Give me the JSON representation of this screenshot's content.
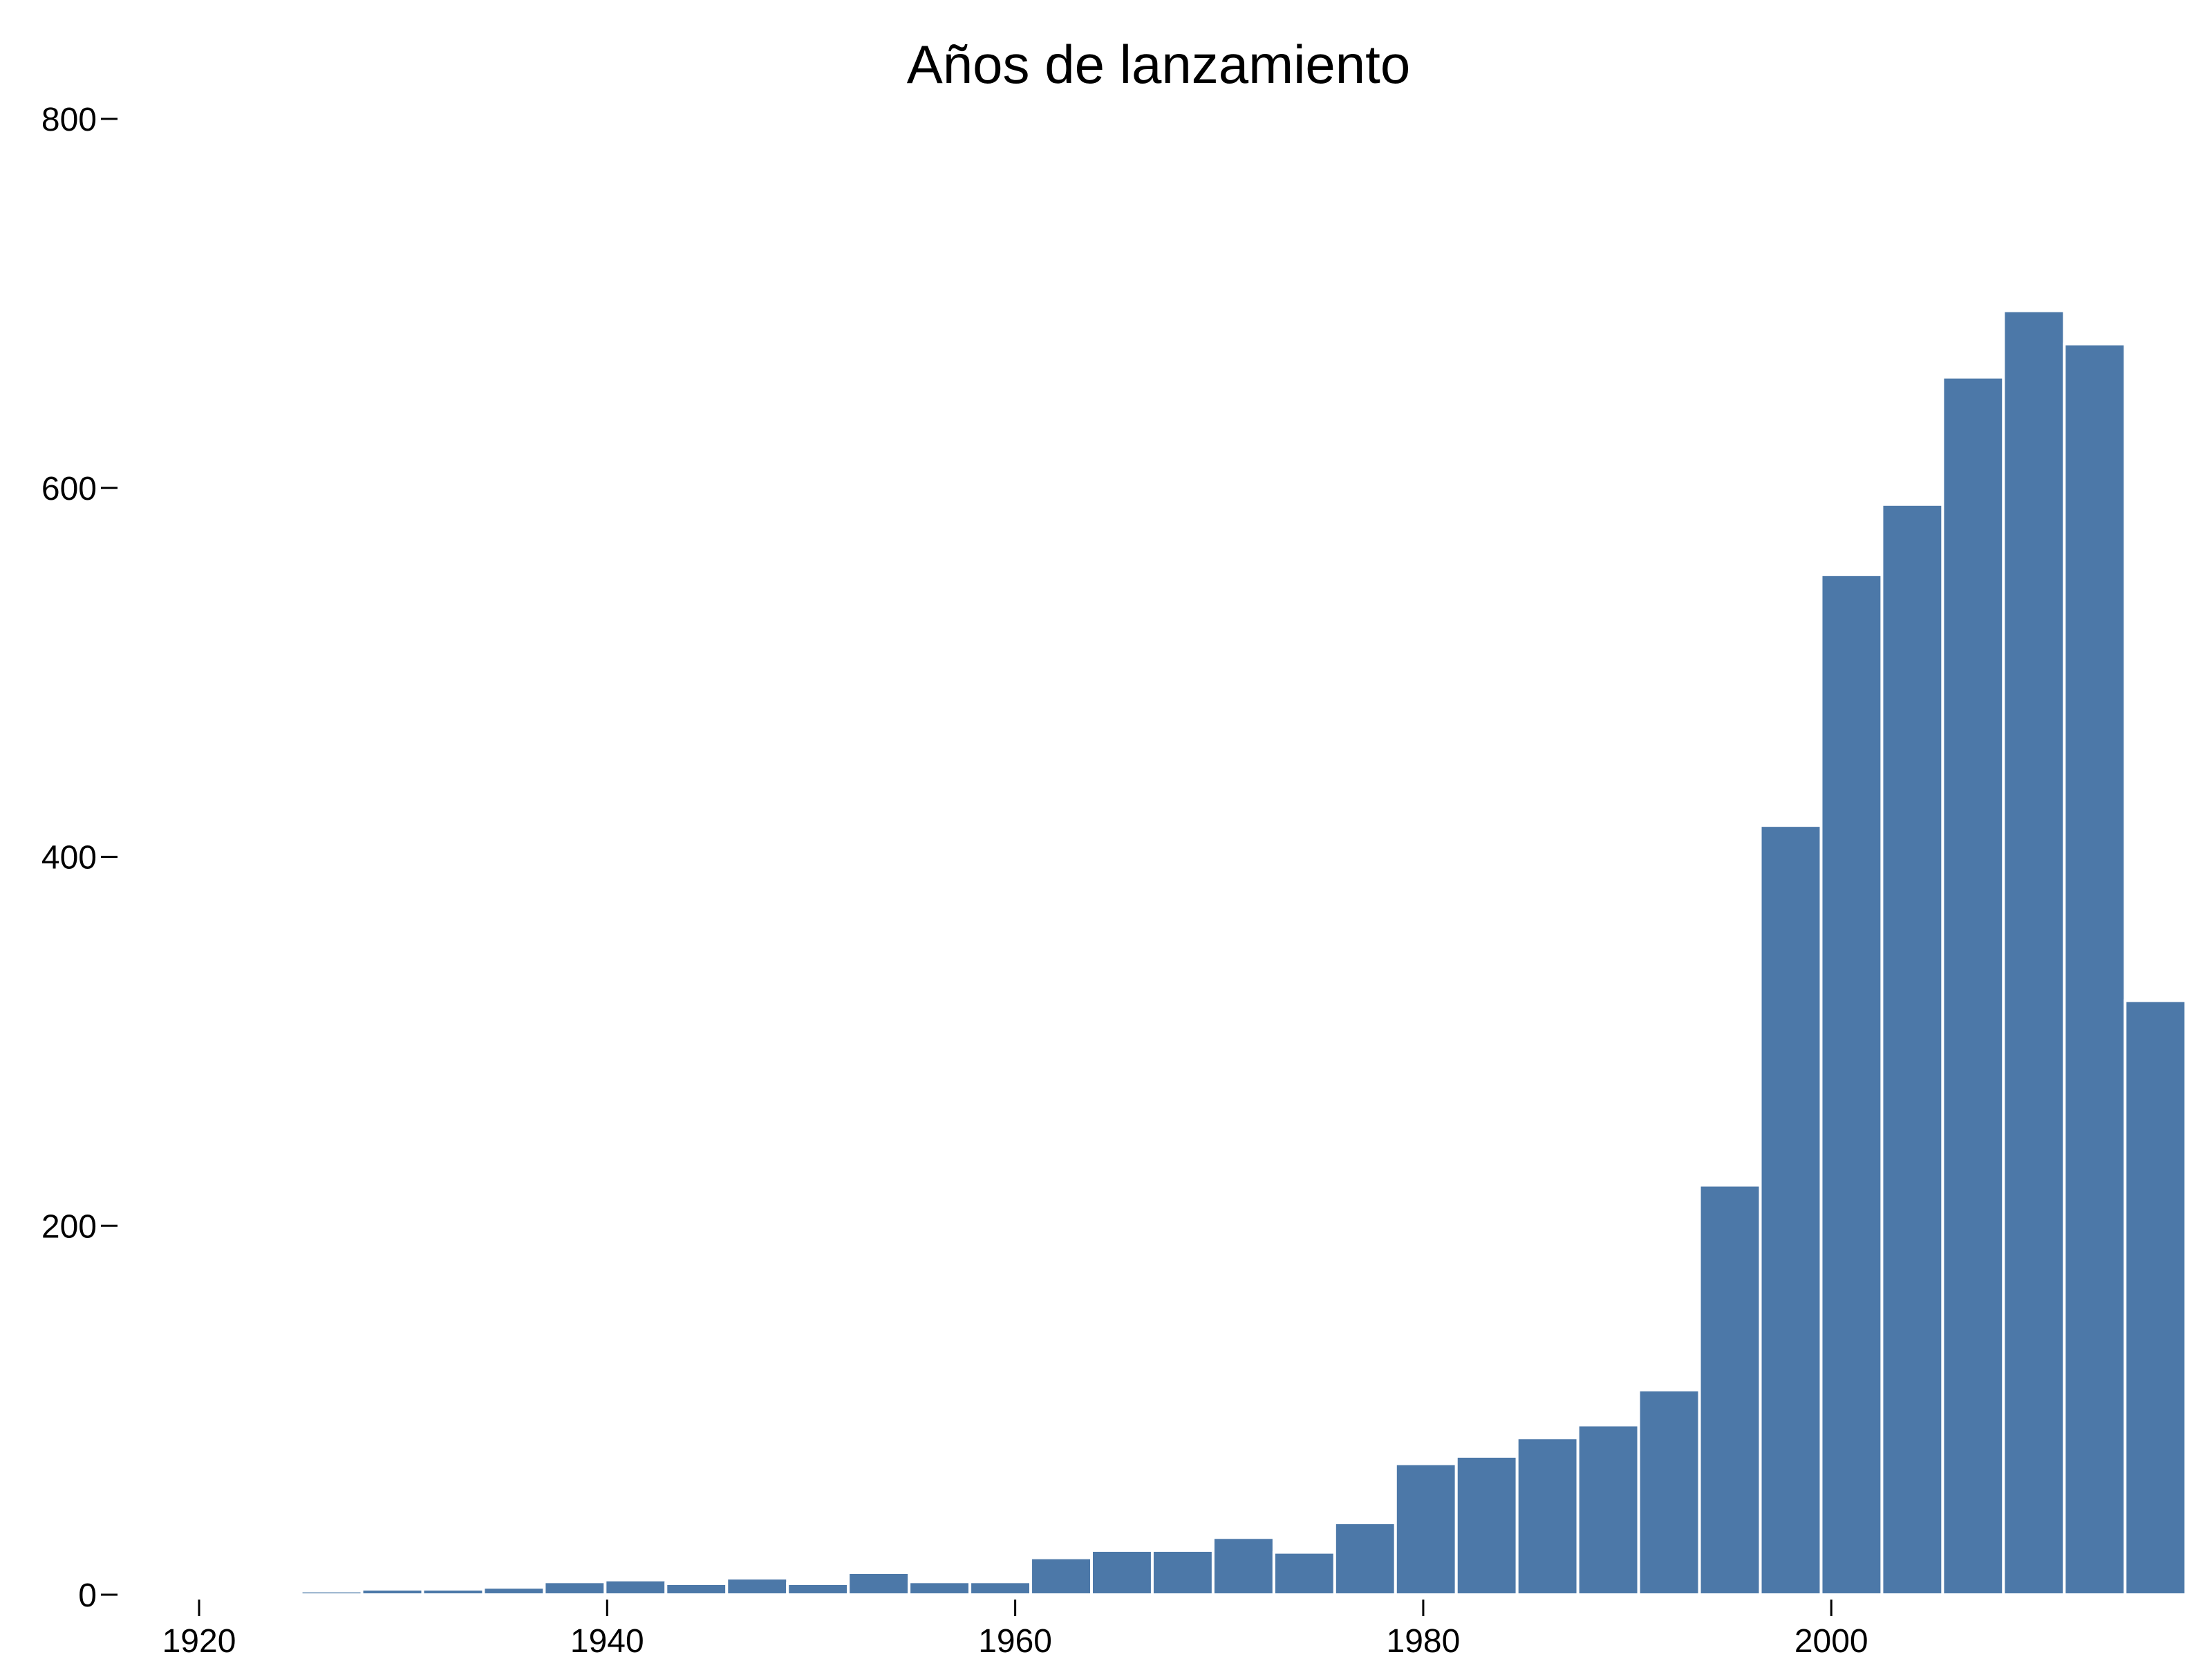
{
  "chart_data": {
    "type": "bar",
    "title": "Años de lanzamiento",
    "xlabel": "",
    "ylabel": "",
    "x_ticks": [
      "1920",
      "1940",
      "1960",
      "1980",
      "2000"
    ],
    "y_ticks": [
      "0",
      "200",
      "400",
      "600",
      "800"
    ],
    "xlim": [
      1920,
      2017
    ],
    "ylim": [
      0,
      800
    ],
    "bin_width": 2.98,
    "grid": false,
    "legend": "none",
    "bar_color": "#4c78a8",
    "bins": [
      {
        "start": 1925.0,
        "end": 1927.98,
        "count": 2
      },
      {
        "start": 1927.98,
        "end": 1930.96,
        "count": 3
      },
      {
        "start": 1930.96,
        "end": 1933.94,
        "count": 3
      },
      {
        "start": 1933.94,
        "end": 1936.92,
        "count": 4
      },
      {
        "start": 1936.92,
        "end": 1939.9,
        "count": 7
      },
      {
        "start": 1939.9,
        "end": 1942.88,
        "count": 8
      },
      {
        "start": 1942.88,
        "end": 1945.86,
        "count": 6
      },
      {
        "start": 1945.86,
        "end": 1948.84,
        "count": 9
      },
      {
        "start": 1948.84,
        "end": 1951.82,
        "count": 6
      },
      {
        "start": 1951.82,
        "end": 1954.8,
        "count": 12
      },
      {
        "start": 1954.8,
        "end": 1957.78,
        "count": 7
      },
      {
        "start": 1957.78,
        "end": 1960.76,
        "count": 7
      },
      {
        "start": 1960.76,
        "end": 1963.74,
        "count": 20
      },
      {
        "start": 1963.74,
        "end": 1966.72,
        "count": 24
      },
      {
        "start": 1966.72,
        "end": 1969.7,
        "count": 24
      },
      {
        "start": 1969.7,
        "end": 1972.68,
        "count": 31
      },
      {
        "start": 1972.68,
        "end": 1975.66,
        "count": 23
      },
      {
        "start": 1975.66,
        "end": 1978.64,
        "count": 39
      },
      {
        "start": 1978.64,
        "end": 1981.62,
        "count": 71
      },
      {
        "start": 1981.62,
        "end": 1984.6,
        "count": 75
      },
      {
        "start": 1984.6,
        "end": 1987.58,
        "count": 85
      },
      {
        "start": 1987.58,
        "end": 1990.56,
        "count": 92
      },
      {
        "start": 1990.56,
        "end": 1993.54,
        "count": 111
      },
      {
        "start": 1993.54,
        "end": 1996.52,
        "count": 222
      },
      {
        "start": 1996.52,
        "end": 1999.5,
        "count": 417
      },
      {
        "start": 1999.5,
        "end": 2002.48,
        "count": 553
      },
      {
        "start": 2002.48,
        "end": 2005.46,
        "count": 591
      },
      {
        "start": 2005.46,
        "end": 2008.44,
        "count": 660
      },
      {
        "start": 2008.44,
        "end": 2011.42,
        "count": 696
      },
      {
        "start": 2011.42,
        "end": 2014.4,
        "count": 678
      },
      {
        "start": 2014.4,
        "end": 2017.38,
        "count": 322
      }
    ]
  }
}
